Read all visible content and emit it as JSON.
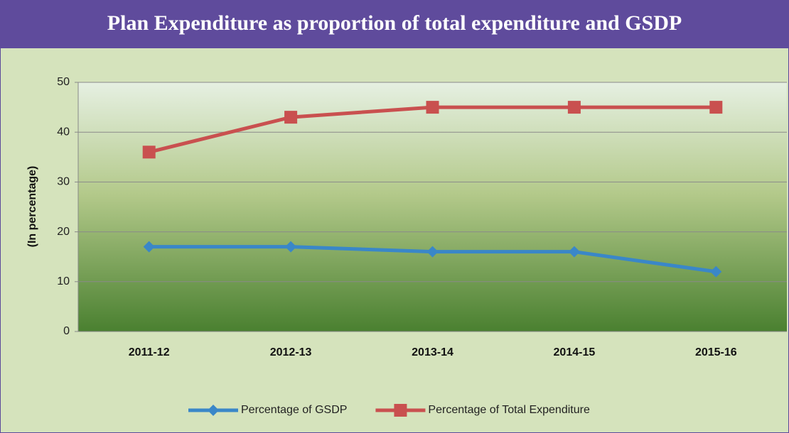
{
  "chart_data": {
    "type": "line",
    "title": "Plan Expenditure as proportion of total expenditure and GSDP",
    "y_label": "(In percentage)",
    "categories": [
      "2011-12",
      "2012-13",
      "2013-14",
      "2014-15",
      "2015-16"
    ],
    "series": [
      {
        "name": "Percentage of GSDP",
        "color": "#3a87c8",
        "marker": "diamond",
        "values": [
          17,
          17,
          16,
          16,
          12
        ]
      },
      {
        "name": "Percentage of Total Expenditure",
        "color": "#c9504f",
        "marker": "square",
        "values": [
          36,
          43,
          45,
          45,
          45
        ]
      }
    ],
    "ylim": [
      0,
      50
    ],
    "yticks": [
      0,
      10,
      20,
      30,
      40,
      50
    ],
    "grid": true,
    "legend": "bottom"
  }
}
